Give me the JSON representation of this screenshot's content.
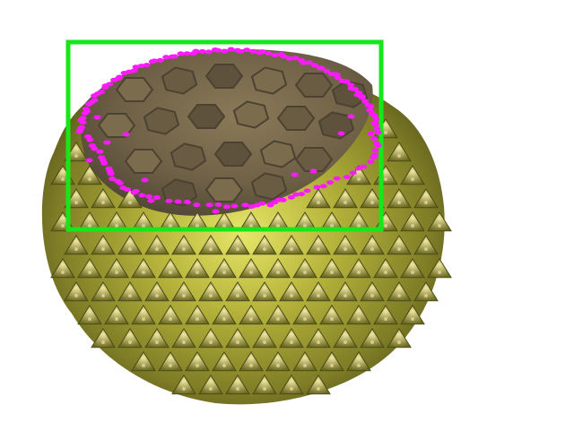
{
  "image": {
    "subject": "durian-fruit",
    "background_color": "#ffffff"
  },
  "annotations": {
    "bounding_box": {
      "color": "#19e619"
    },
    "contour_points": {
      "color": "#ff1aff"
    }
  },
  "colors": {
    "rind_base": "#8a8a2a",
    "rind_highlight": "#e6e66a",
    "rind_shadow": "#4a4a18",
    "cut_face": "#6e6046",
    "cut_face_dark": "#4c4232",
    "spike_tip": "#d8c890"
  }
}
